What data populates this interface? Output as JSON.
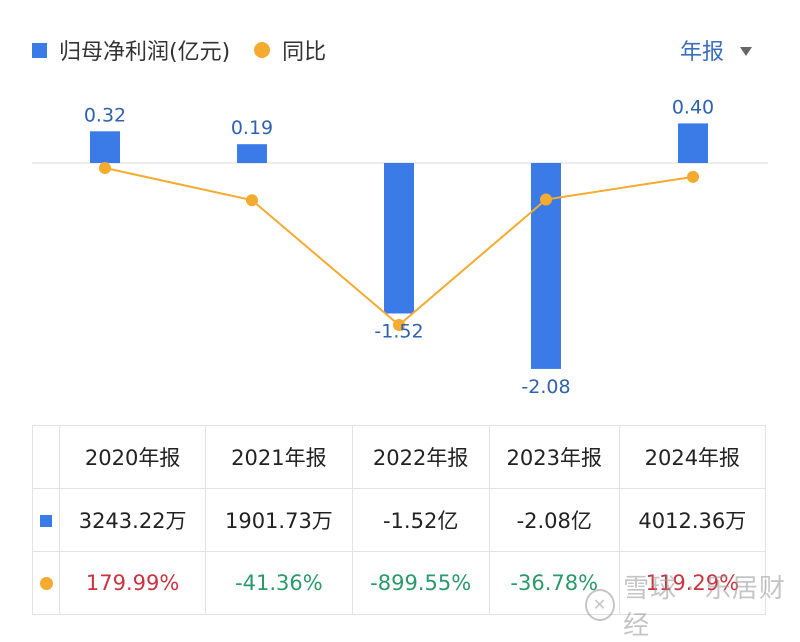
{
  "legend": {
    "bar_label": "归母净利润(亿元)",
    "line_label": "同比"
  },
  "period_selector": {
    "label": "年报"
  },
  "colors": {
    "bar": "#3b7be8",
    "line": "#f5aa30",
    "label": "#2f62b0",
    "positive": "#cc3340",
    "negative": "#2a9a6a"
  },
  "chart_data": {
    "type": "bar",
    "categories": [
      "2020年报",
      "2021年报",
      "2022年报",
      "2023年报",
      "2024年报"
    ],
    "series": [
      {
        "name": "归母净利润(亿元)",
        "type": "bar",
        "values": [
          0.32,
          0.19,
          -1.52,
          -2.08,
          0.4
        ]
      },
      {
        "name": "同比",
        "type": "line",
        "values": [
          179.99,
          -41.36,
          -899.55,
          -36.78,
          119.29
        ],
        "unit": "%"
      }
    ],
    "bar_labels": [
      "0.32",
      "0.19",
      "-1.52",
      "-2.08",
      "0.40"
    ],
    "title": "",
    "xlabel": "",
    "ylabel": "",
    "grid": false,
    "legend_position": "top-left"
  },
  "table": {
    "headers": [
      "2020年报",
      "2021年报",
      "2022年报",
      "2023年报",
      "2024年报"
    ],
    "profit_row": [
      "3243.22万",
      "1901.73万",
      "-1.52亿",
      "-2.08亿",
      "4012.36万"
    ],
    "yoy_row": [
      "179.99%",
      "-41.36%",
      "-899.55%",
      "-36.78%",
      "119.29%"
    ]
  },
  "watermark": {
    "text": "雪球 · 乐居财经"
  }
}
